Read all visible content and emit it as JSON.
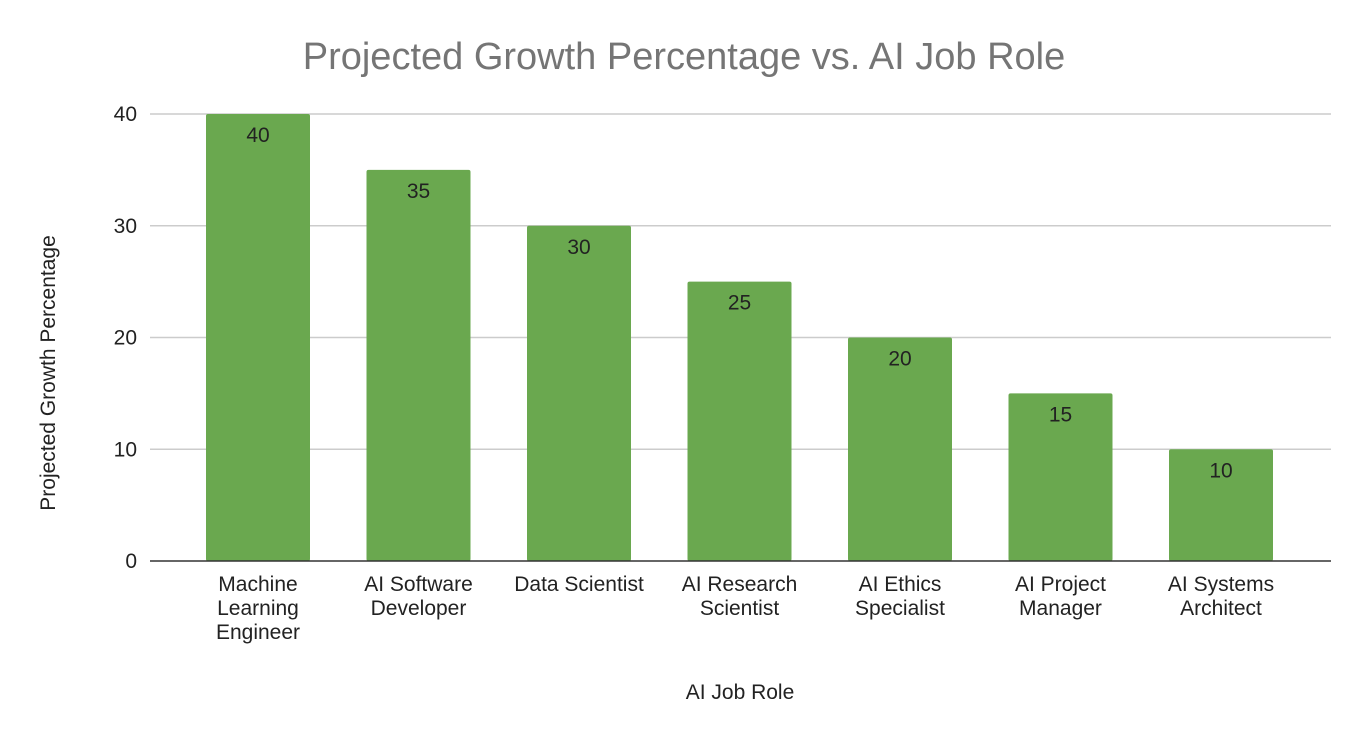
{
  "chart_data": {
    "type": "bar",
    "title": "Projected Growth Percentage vs. AI Job Role",
    "xlabel": "AI Job Role",
    "ylabel": "Projected Growth Percentage",
    "categories": [
      "Machine Learning Engineer",
      "AI Software Developer",
      "Data Scientist",
      "AI Research Scientist",
      "AI Ethics Specialist",
      "AI Project Manager",
      "AI Systems Architect"
    ],
    "category_lines": [
      [
        "Machine",
        "Learning",
        "Engineer"
      ],
      [
        "AI Software",
        "Developer"
      ],
      [
        "Data Scientist"
      ],
      [
        "AI Research",
        "Scientist"
      ],
      [
        "AI Ethics",
        "Specialist"
      ],
      [
        "AI Project",
        "Manager"
      ],
      [
        "AI Systems",
        "Architect"
      ]
    ],
    "values": [
      40,
      35,
      30,
      25,
      20,
      15,
      10
    ],
    "ylim": [
      0,
      40
    ],
    "yticks": [
      0,
      10,
      20,
      30,
      40
    ],
    "grid": true,
    "legend": "none",
    "bar_color": "#6aa84f",
    "data_labels": true
  }
}
